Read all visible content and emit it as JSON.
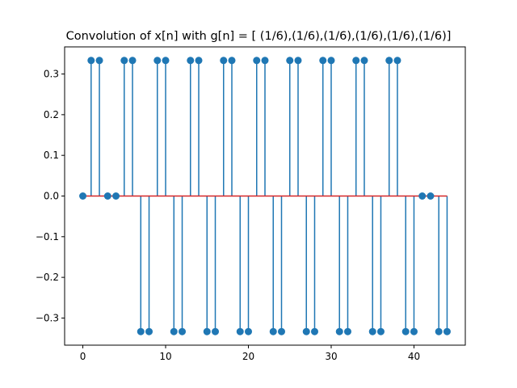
{
  "chart_data": {
    "type": "stem",
    "title": "Convolution of x[n] with g[n] = [ (1/6),(1/6),(1/6),(1/6),(1/6),(1/6)]",
    "xlabel": "",
    "ylabel": "",
    "xlim": [
      -2.2,
      46.2
    ],
    "ylim": [
      -0.3667,
      0.3667
    ],
    "xticks": [
      0,
      10,
      20,
      30,
      40
    ],
    "xtick_labels": [
      "0",
      "10",
      "20",
      "30",
      "40"
    ],
    "yticks": [
      -0.3,
      -0.2,
      -0.1,
      0.0,
      0.1,
      0.2,
      0.3
    ],
    "ytick_labels": [
      "−0.3",
      "−0.2",
      "−0.1",
      "0.0",
      "0.1",
      "0.2",
      "0.3"
    ],
    "grid": false,
    "x": [
      0,
      1,
      2,
      3,
      4,
      5,
      6,
      7,
      8,
      9,
      10,
      11,
      12,
      13,
      14,
      15,
      16,
      17,
      18,
      19,
      20,
      21,
      22,
      23,
      24,
      25,
      26,
      27,
      28,
      29,
      30,
      31,
      32,
      33,
      34,
      35,
      36,
      37,
      38,
      39,
      40,
      41,
      42,
      43,
      44
    ],
    "values": [
      0,
      0.3333,
      0.3333,
      0,
      0,
      0.3333,
      0.3333,
      -0.3333,
      -0.3333,
      0.3333,
      0.3333,
      -0.3333,
      -0.3333,
      0.3333,
      0.3333,
      -0.3333,
      -0.3333,
      0.3333,
      0.3333,
      -0.3333,
      -0.3333,
      0.3333,
      0.3333,
      -0.3333,
      -0.3333,
      0.3333,
      0.3333,
      -0.3333,
      -0.3333,
      0.3333,
      0.3333,
      -0.3333,
      -0.3333,
      0.3333,
      0.3333,
      -0.3333,
      -0.3333,
      0.3333,
      0.3333,
      -0.3333,
      -0.3333,
      0,
      0,
      -0.3333,
      -0.3333
    ],
    "colors": {
      "stem": "#1f77b4",
      "marker": "#1f77b4",
      "baseline": "#d62728"
    }
  }
}
